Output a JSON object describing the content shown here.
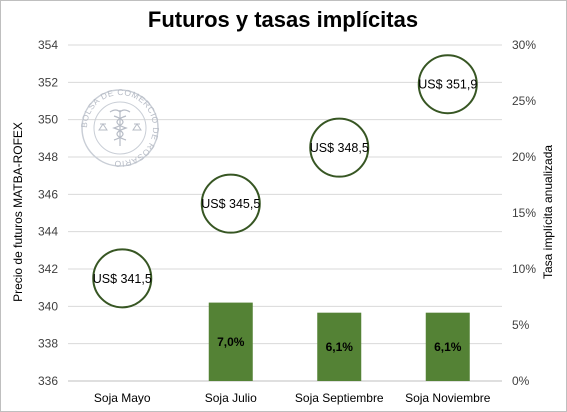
{
  "chart_data": {
    "type": "bar",
    "title": "Futuros y tasas implícitas",
    "categories": [
      "Soja Mayo",
      "Soja Julio",
      "Soja Septiembre",
      "Soja Noviembre"
    ],
    "ylabel": "Precio de futuros MATBA-ROFEX",
    "y2label": "Tasa implícita  anualizada",
    "ylim": [
      336,
      354
    ],
    "y2lim": [
      0,
      30
    ],
    "yticks": [
      "336",
      "338",
      "340",
      "342",
      "344",
      "346",
      "348",
      "350",
      "352",
      "354"
    ],
    "y2ticks": [
      "0%",
      "5%",
      "10%",
      "15%",
      "20%",
      "25%",
      "30%"
    ],
    "grid": true,
    "watermark_text": "BOLSA DE COMERCIO DE ROSARIO",
    "series": [
      {
        "axis": "left",
        "marker": "circle",
        "values": [
          341.5,
          345.5,
          348.5,
          351.9
        ],
        "labels": [
          "US$ 341,5",
          "US$ 345,5",
          "US$ 348,5",
          "US$ 351,9"
        ],
        "color": "#375623"
      },
      {
        "axis": "right",
        "marker": "bar",
        "values": [
          null,
          7.0,
          6.1,
          6.1
        ],
        "labels": [
          "",
          "7,0%",
          "6,1%",
          "6,1%"
        ],
        "color": "#548235"
      }
    ]
  }
}
